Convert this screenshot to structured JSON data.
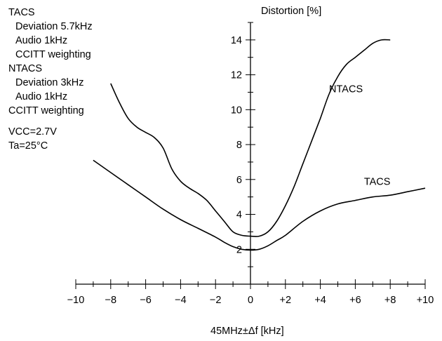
{
  "notes": {
    "tacs_header": "TACS",
    "tacs_deviation": "Deviation 5.7kHz",
    "tacs_audio": "Audio 1kHz",
    "tacs_weighting": "CCITT weighting",
    "ntacs_header": "NTACS",
    "ntacs_deviation": "Deviation 3kHz",
    "ntacs_audio": "Audio 1kHz",
    "ntacs_weighting": "CCITT weighting",
    "vcc": "VCC=2.7V",
    "ta": "Ta=25°C"
  },
  "chart_data": {
    "type": "line",
    "ylabel": "Distortion [%]",
    "xlabel": "45MHz±Δf [kHz]",
    "xlim": [
      -10,
      10
    ],
    "ylim": [
      0,
      15
    ],
    "x_ticks": [
      "−10",
      "−8",
      "−6",
      "−4",
      "−2",
      "0",
      "+2",
      "+4",
      "+6",
      "+8",
      "+10"
    ],
    "y_ticks": [
      "2",
      "4",
      "6",
      "8",
      "10",
      "12",
      "14"
    ],
    "grid": false,
    "series": [
      {
        "name": "NTACS",
        "x": [
          -8.0,
          -7.5,
          -7.0,
          -6.5,
          -6.0,
          -5.5,
          -5.0,
          -4.5,
          -4.0,
          -3.5,
          -3.0,
          -2.5,
          -2.0,
          -1.5,
          -1.0,
          -0.5,
          0.0,
          0.5,
          1.0,
          1.5,
          2.0,
          2.5,
          3.0,
          3.5,
          4.0,
          4.5,
          5.0,
          5.5,
          6.0,
          6.5,
          7.0,
          7.5,
          8.0
        ],
        "y": [
          11.5,
          10.4,
          9.5,
          9.0,
          8.7,
          8.4,
          7.8,
          6.6,
          5.9,
          5.5,
          5.2,
          4.8,
          4.2,
          3.6,
          3.0,
          2.8,
          2.75,
          2.75,
          3.0,
          3.6,
          4.5,
          5.6,
          6.9,
          8.2,
          9.5,
          10.9,
          11.9,
          12.6,
          13.0,
          13.4,
          13.8,
          14.0,
          14.0
        ]
      },
      {
        "name": "TACS",
        "x": [
          -9.0,
          -8.0,
          -7.0,
          -6.0,
          -5.0,
          -4.0,
          -3.0,
          -2.0,
          -1.5,
          -1.0,
          -0.5,
          0.0,
          0.5,
          1.0,
          1.5,
          2.0,
          3.0,
          4.0,
          5.0,
          6.0,
          7.0,
          8.0,
          9.0,
          10.0
        ],
        "y": [
          7.1,
          6.4,
          5.7,
          5.0,
          4.3,
          3.7,
          3.2,
          2.7,
          2.4,
          2.15,
          2.0,
          1.95,
          2.0,
          2.2,
          2.5,
          2.8,
          3.6,
          4.2,
          4.6,
          4.8,
          5.0,
          5.1,
          5.3,
          5.5
        ]
      }
    ],
    "annotations": [
      {
        "text": "NTACS",
        "x": 4.5,
        "y": 11.0
      },
      {
        "text": "TACS",
        "x": 6.5,
        "y": 5.7
      }
    ]
  }
}
